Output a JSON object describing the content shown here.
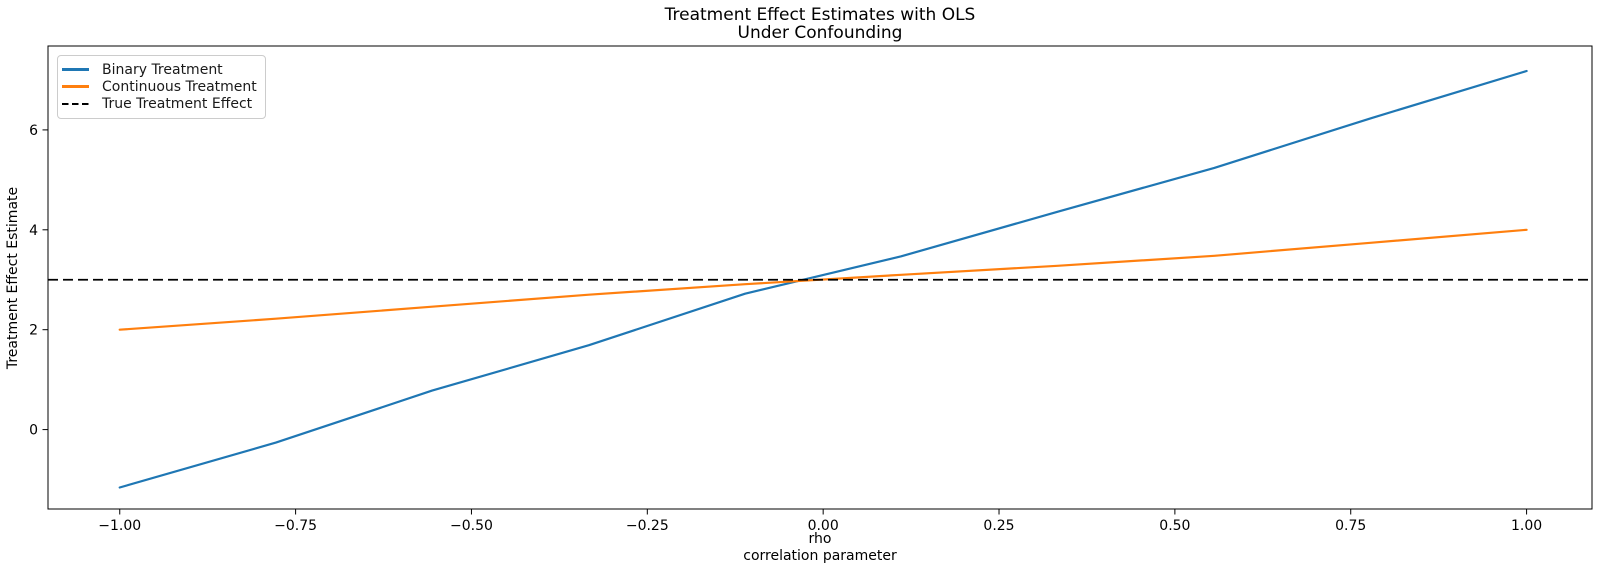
{
  "chart_data": {
    "type": "line",
    "title_lines": [
      "Treatment Effect Estimates with OLS",
      "Under Confounding"
    ],
    "xlabel_lines": [
      "rho",
      "correlation parameter"
    ],
    "ylabel": "Treatment Effect Estimate",
    "xlim": [
      -1.102,
      1.093
    ],
    "ylim": [
      -1.59,
      7.68
    ],
    "grid": false,
    "legend_position": "upper left",
    "background_color": "#ffffff",
    "axis_color": "#000000",
    "x_ticks": [
      {
        "value": -1.0,
        "label": "−1.00"
      },
      {
        "value": -0.75,
        "label": "−0.75"
      },
      {
        "value": -0.5,
        "label": "−0.50"
      },
      {
        "value": -0.25,
        "label": "−0.25"
      },
      {
        "value": 0.0,
        "label": "0.00"
      },
      {
        "value": 0.25,
        "label": "0.25"
      },
      {
        "value": 0.5,
        "label": "0.50"
      },
      {
        "value": 0.75,
        "label": "0.75"
      },
      {
        "value": 1.0,
        "label": "1.00"
      }
    ],
    "y_ticks": [
      {
        "value": 0,
        "label": "0"
      },
      {
        "value": 2,
        "label": "2"
      },
      {
        "value": 4,
        "label": "4"
      },
      {
        "value": 6,
        "label": "6"
      }
    ],
    "series": [
      {
        "name": "Binary Treatment",
        "color": "#1f77b4",
        "style": "solid",
        "x": [
          -1.0,
          -0.778,
          -0.556,
          -0.333,
          -0.111,
          0.111,
          0.333,
          0.556,
          0.778,
          1.0
        ],
        "y": [
          -1.16,
          -0.26,
          0.78,
          1.69,
          2.72,
          3.47,
          4.36,
          5.24,
          6.23,
          7.18
        ]
      },
      {
        "name": "Continuous Treatment",
        "color": "#ff7f0e",
        "style": "solid",
        "x": [
          -1.0,
          -0.778,
          -0.556,
          -0.333,
          -0.111,
          0.111,
          0.333,
          0.556,
          0.778,
          1.0
        ],
        "y": [
          2.0,
          2.22,
          2.46,
          2.7,
          2.91,
          3.1,
          3.28,
          3.48,
          3.74,
          4.0
        ]
      },
      {
        "name": "True Treatment Effect",
        "color": "#000000",
        "style": "dashed",
        "axhline": 3.0
      }
    ]
  }
}
